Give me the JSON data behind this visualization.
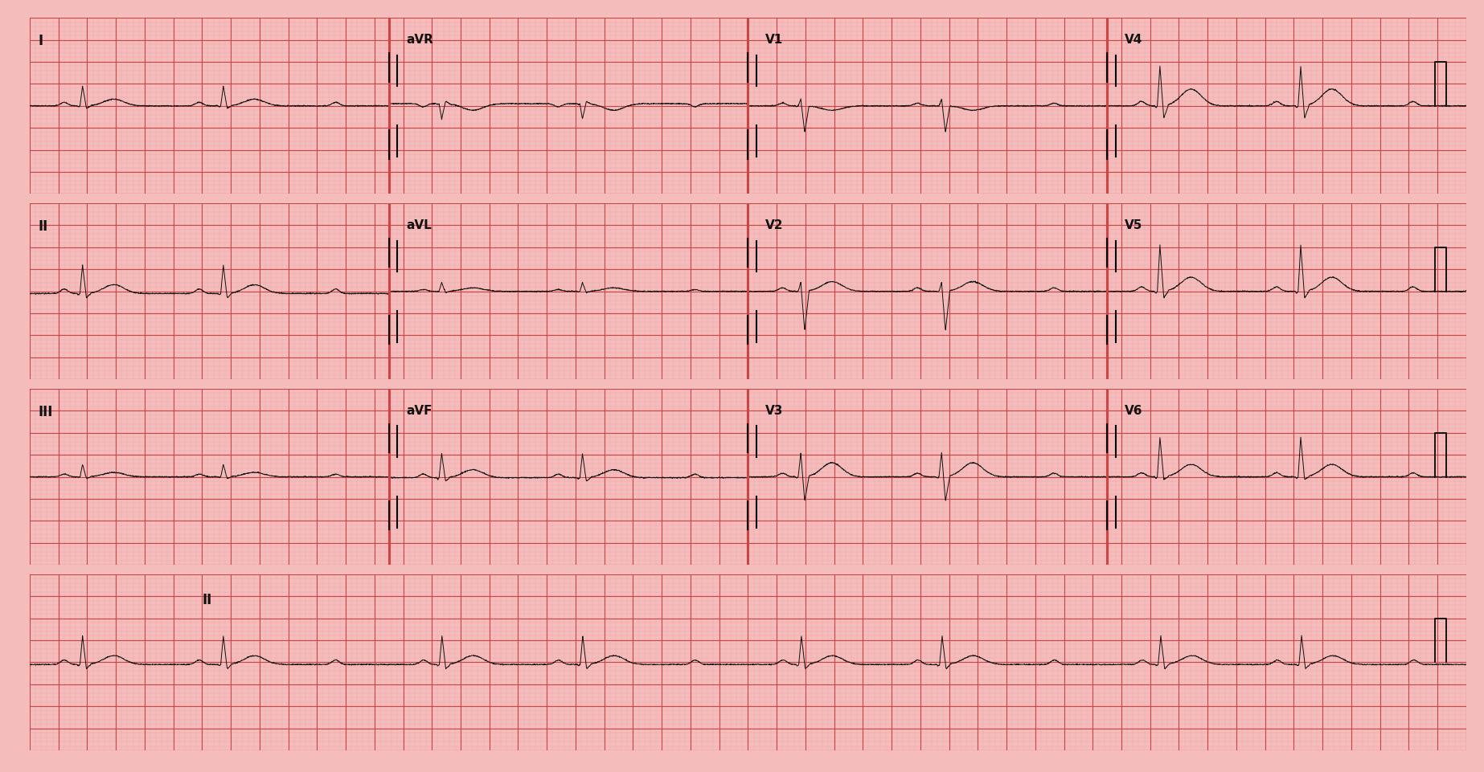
{
  "bg_color": "#f5bcbc",
  "minor_grid_color": "#eeaaaa",
  "major_grid_color": "#cc4444",
  "ecg_color": "#111111",
  "label_color": "#111111",
  "layout": [
    [
      "I",
      "aVR",
      "V1",
      "V4"
    ],
    [
      "II",
      "aVL",
      "V2",
      "V5"
    ],
    [
      "III",
      "aVF",
      "V3",
      "V6"
    ],
    [
      "II",
      null,
      null,
      null
    ]
  ],
  "row_primary_labels": [
    "I",
    "II",
    "III",
    "II"
  ],
  "fs": 500,
  "duration": 10.0,
  "col_dur": 2.5,
  "minor_dt": 0.04,
  "major_dt": 0.2,
  "minor_dv": 0.1,
  "major_dv": 0.5,
  "ylim": [
    -2.0,
    2.0
  ],
  "ecg_lw": 0.7,
  "grid_minor_lw": 0.35,
  "grid_major_lw": 0.8,
  "label_fontsize": 12,
  "lead_label_fontsize": 11,
  "noise_std": 0.006,
  "lead_params": {
    "I": {
      "r": 0.45,
      "s": -0.06,
      "t": 0.15,
      "p": 0.08,
      "baseline": 0.0
    },
    "II": {
      "r": 0.65,
      "s": -0.1,
      "t": 0.2,
      "p": 0.1,
      "baseline": -0.05
    },
    "III": {
      "r": 0.28,
      "s": -0.04,
      "t": 0.1,
      "p": 0.06,
      "baseline": 0.0
    },
    "aVR": {
      "r": -0.35,
      "s": 0.05,
      "t": -0.15,
      "p": -0.07,
      "baseline": 0.05
    },
    "aVL": {
      "r": 0.2,
      "s": -0.03,
      "t": 0.08,
      "p": 0.04,
      "baseline": 0.0
    },
    "aVF": {
      "r": 0.55,
      "s": -0.08,
      "t": 0.18,
      "p": 0.08,
      "baseline": -0.02
    },
    "V1": {
      "r": 0.15,
      "s": -0.6,
      "t": -0.1,
      "p": 0.06,
      "baseline": 0.0
    },
    "V2": {
      "r": 0.2,
      "s": -0.9,
      "t": 0.22,
      "p": 0.08,
      "baseline": 0.0
    },
    "V3": {
      "r": 0.55,
      "s": -0.55,
      "t": 0.32,
      "p": 0.08,
      "baseline": 0.0
    },
    "V4": {
      "r": 0.9,
      "s": -0.28,
      "t": 0.38,
      "p": 0.1,
      "baseline": 0.0
    },
    "V5": {
      "r": 1.05,
      "s": -0.15,
      "t": 0.32,
      "p": 0.1,
      "baseline": 0.0
    },
    "V6": {
      "r": 0.9,
      "s": -0.06,
      "t": 0.28,
      "p": 0.09,
      "baseline": 0.0
    }
  },
  "wenckebach_prs": [
    0.18,
    0.26,
    0.36
  ],
  "base_rr": 0.9,
  "dropped_rr_factor": 0.78
}
